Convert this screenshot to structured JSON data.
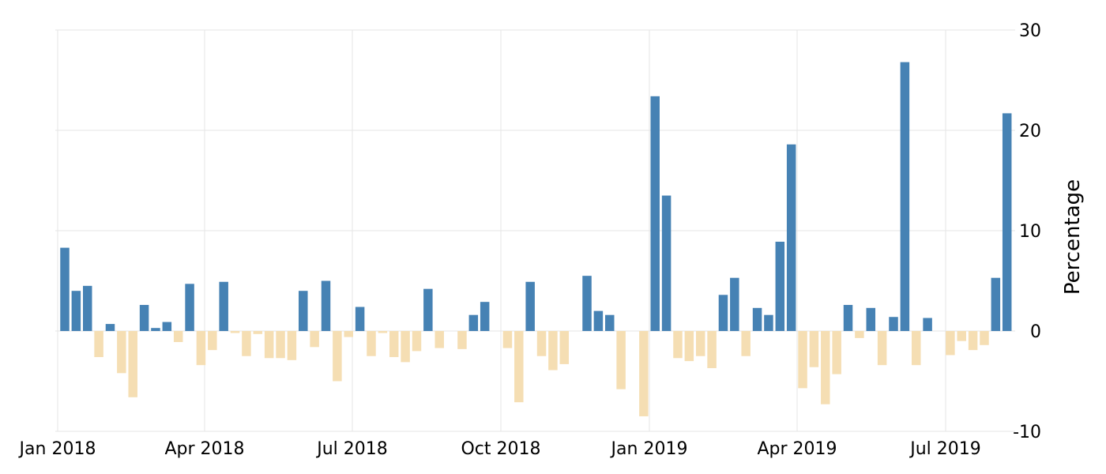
{
  "chart_data": {
    "type": "bar",
    "title": "",
    "xlabel": "",
    "ylabel": "Percentage",
    "ylim": [
      -10,
      30
    ],
    "y_ticks": [
      -10,
      0,
      10,
      20,
      30
    ],
    "x_tick_labels": [
      "Jan 2018",
      "Apr 2018",
      "Jul 2018",
      "Oct 2018",
      "Jan 2019",
      "Apr 2019",
      "Jul 2019"
    ],
    "grid": true,
    "colors": {
      "positive": "#4682b4",
      "negative": "#f5deb3"
    },
    "values": [
      8.3,
      4.0,
      4.5,
      -2.6,
      0.7,
      -4.2,
      -6.6,
      2.6,
      0.3,
      0.9,
      -1.1,
      4.7,
      -3.4,
      -1.9,
      4.9,
      -0.2,
      -2.5,
      -0.3,
      -2.7,
      -2.7,
      -2.9,
      4.0,
      -1.6,
      5.0,
      -5.0,
      -0.6,
      2.4,
      -2.5,
      -0.2,
      -2.6,
      -3.1,
      -2.0,
      4.2,
      -1.7,
      0.0,
      -1.8,
      1.6,
      2.9,
      0.0,
      -1.7,
      -7.1,
      4.9,
      -2.5,
      -3.9,
      -3.3,
      0.0,
      5.5,
      2.0,
      1.6,
      -5.8,
      0.0,
      -8.5,
      23.4,
      13.5,
      -2.7,
      -3.0,
      -2.5,
      -3.7,
      3.6,
      5.3,
      -2.5,
      2.3,
      1.6,
      8.9,
      18.6,
      -5.7,
      -3.6,
      -7.3,
      -4.3,
      2.6,
      -0.7,
      2.3,
      -3.4,
      1.4,
      26.8,
      -3.4,
      1.3,
      0.0,
      -2.4,
      -1.0,
      -1.9,
      -1.4,
      5.3,
      21.7
    ]
  }
}
